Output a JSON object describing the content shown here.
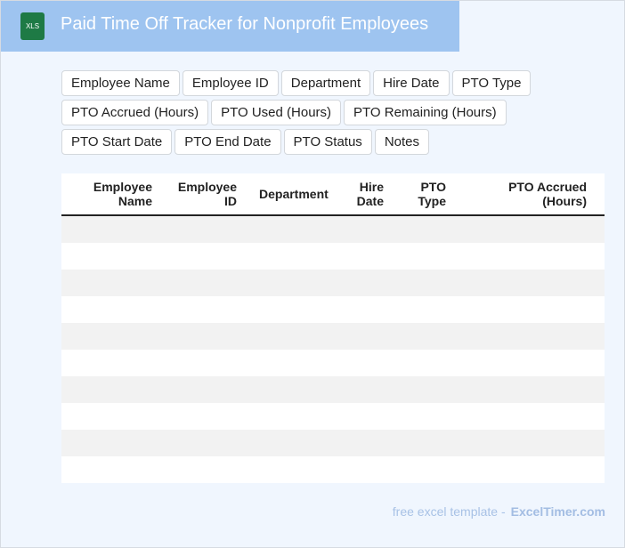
{
  "header": {
    "icon": "XLS",
    "title": "Paid Time Off Tracker for Nonprofit Employees"
  },
  "fields": [
    "Employee Name",
    "Employee ID",
    "Department",
    "Hire Date",
    "PTO Type",
    "PTO Accrued (Hours)",
    "PTO Used (Hours)",
    "PTO Remaining (Hours)",
    "PTO Start Date",
    "PTO End Date",
    "PTO Status",
    "Notes"
  ],
  "table": {
    "headers": [
      "Employee Name",
      "Employee ID",
      "Department",
      "Hire Date",
      "PTO Type",
      "PTO Accrued (Hours)"
    ]
  },
  "footer": {
    "text": "free excel template -",
    "brand": "ExcelTimer.com"
  }
}
